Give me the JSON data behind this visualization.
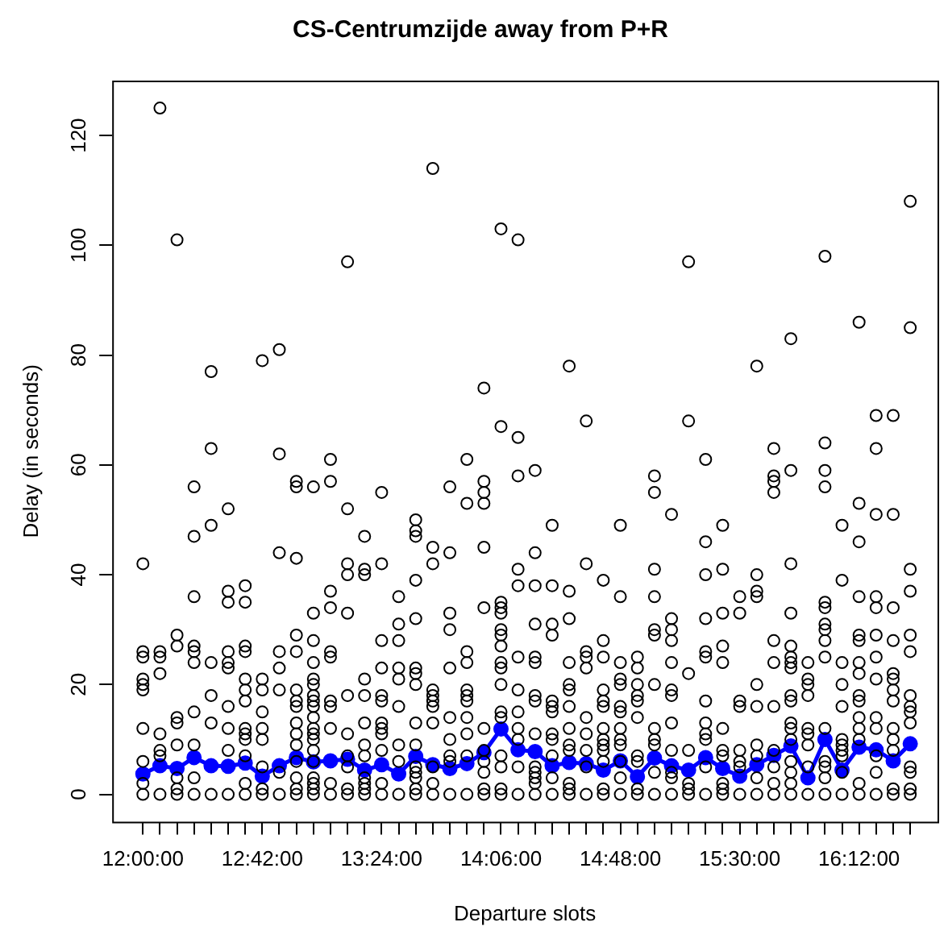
{
  "chart_data": {
    "type": "scatter",
    "title": "CS-Centrumzijde away from P+R",
    "xlabel": "Departure slots",
    "ylabel": "Delay (in seconds)",
    "xlim": [
      11.82,
      16.66
    ],
    "ylim": [
      -5,
      130
    ],
    "yticks": [
      0,
      20,
      40,
      60,
      80,
      100,
      120
    ],
    "xticks": [
      {
        "value": 12,
        "label": "12:00:00"
      },
      {
        "value": 12.1,
        "label": null
      },
      {
        "value": 12.2,
        "label": null
      },
      {
        "value": 12.3,
        "label": null
      },
      {
        "value": 12.4,
        "label": null
      },
      {
        "value": 12.5,
        "label": null
      },
      {
        "value": 12.6,
        "label": null
      },
      {
        "value": 12.7,
        "label": "12:42:00"
      },
      {
        "value": 12.8,
        "label": null
      },
      {
        "value": 12.9,
        "label": null
      },
      {
        "value": 13,
        "label": null
      },
      {
        "value": 13.1,
        "label": null
      },
      {
        "value": 13.2,
        "label": null
      },
      {
        "value": 13.3,
        "label": null
      },
      {
        "value": 13.4,
        "label": "13:24:00"
      },
      {
        "value": 13.5,
        "label": null
      },
      {
        "value": 13.6,
        "label": null
      },
      {
        "value": 13.7,
        "label": null
      },
      {
        "value": 13.8,
        "label": null
      },
      {
        "value": 13.9,
        "label": null
      },
      {
        "value": 14,
        "label": null
      },
      {
        "value": 14.1,
        "label": "14:06:00"
      },
      {
        "value": 14.2,
        "label": null
      },
      {
        "value": 14.3,
        "label": null
      },
      {
        "value": 14.4,
        "label": null
      },
      {
        "value": 14.5,
        "label": null
      },
      {
        "value": 14.6,
        "label": null
      },
      {
        "value": 14.7,
        "label": null
      },
      {
        "value": 14.8,
        "label": "14:48:00"
      },
      {
        "value": 14.9,
        "label": null
      },
      {
        "value": 15,
        "label": null
      },
      {
        "value": 15.1,
        "label": null
      },
      {
        "value": 15.2,
        "label": null
      },
      {
        "value": 15.3,
        "label": null
      },
      {
        "value": 15.4,
        "label": null
      },
      {
        "value": 15.5,
        "label": "15:30:00"
      },
      {
        "value": 15.6,
        "label": null
      },
      {
        "value": 15.7,
        "label": null
      },
      {
        "value": 15.8,
        "label": null
      },
      {
        "value": 15.9,
        "label": null
      },
      {
        "value": 16,
        "label": null
      },
      {
        "value": 16.1,
        "label": null
      },
      {
        "value": 16.2,
        "label": "16:12:00"
      },
      {
        "value": 16.3,
        "label": null
      },
      {
        "value": 16.4,
        "label": null
      },
      {
        "value": 16.5,
        "label": null
      }
    ],
    "grid": false,
    "legend": false,
    "series": [
      {
        "type": "scatter",
        "color": "#000000",
        "marker": "circle",
        "x": [
          12,
          12,
          12,
          12,
          12,
          12,
          12,
          12,
          12,
          12,
          12.1,
          12.1,
          12.1,
          12.1,
          12.1,
          12.1,
          12.1,
          12.1,
          12.2,
          12.2,
          12.2,
          12.2,
          12.2,
          12.2,
          12.2,
          12.2,
          12.2,
          12.3,
          12.3,
          12.3,
          12.3,
          12.3,
          12.3,
          12.3,
          12.3,
          12.3,
          12.3,
          12.4,
          12.4,
          12.4,
          12.4,
          12.4,
          12.4,
          12.4,
          12.5,
          12.5,
          12.5,
          12.5,
          12.5,
          12.5,
          12.5,
          12.5,
          12.5,
          12.5,
          12.6,
          12.6,
          12.6,
          12.6,
          12.6,
          12.6,
          12.6,
          12.6,
          12.6,
          12.6,
          12.6,
          12.6,
          12.6,
          12.7,
          12.7,
          12.7,
          12.7,
          12.7,
          12.7,
          12.7,
          12.7,
          12.7,
          12.8,
          12.8,
          12.8,
          12.8,
          12.8,
          12.8,
          12.8,
          12.8,
          12.9,
          12.9,
          12.9,
          12.9,
          12.9,
          12.9,
          12.9,
          12.9,
          12.9,
          12.9,
          12.9,
          12.9,
          12.9,
          12.9,
          12.9,
          13,
          13,
          13,
          13,
          13,
          13,
          13,
          13,
          13,
          13,
          13,
          13,
          13,
          13,
          13,
          13,
          13,
          13,
          13,
          13.1,
          13.1,
          13.1,
          13.1,
          13.1,
          13.1,
          13.1,
          13.1,
          13.1,
          13.1,
          13.1,
          13.2,
          13.2,
          13.2,
          13.2,
          13.2,
          13.2,
          13.2,
          13.2,
          13.2,
          13.2,
          13.2,
          13.3,
          13.3,
          13.3,
          13.3,
          13.3,
          13.3,
          13.3,
          13.3,
          13.3,
          13.3,
          13.3,
          13.3,
          13.4,
          13.4,
          13.4,
          13.4,
          13.4,
          13.4,
          13.4,
          13.4,
          13.4,
          13.4,
          13.4,
          13.4,
          13.5,
          13.5,
          13.5,
          13.5,
          13.5,
          13.5,
          13.5,
          13.5,
          13.5,
          13.6,
          13.6,
          13.6,
          13.6,
          13.6,
          13.6,
          13.6,
          13.6,
          13.6,
          13.6,
          13.6,
          13.6,
          13.6,
          13.6,
          13.6,
          13.7,
          13.7,
          13.7,
          13.7,
          13.7,
          13.7,
          13.7,
          13.7,
          13.7,
          13.7,
          13.7,
          13.8,
          13.8,
          13.8,
          13.8,
          13.8,
          13.8,
          13.8,
          13.8,
          13.8,
          13.8,
          13.9,
          13.9,
          13.9,
          13.9,
          13.9,
          13.9,
          13.9,
          13.9,
          13.9,
          13.9,
          13.9,
          14,
          14,
          14,
          14,
          14,
          14,
          14,
          14,
          14,
          14,
          14,
          14,
          14.1,
          14.1,
          14.1,
          14.1,
          14.1,
          14.1,
          14.1,
          14.1,
          14.1,
          14.1,
          14.1,
          14.1,
          14.1,
          14.1,
          14.1,
          14.1,
          14.1,
          14.2,
          14.2,
          14.2,
          14.2,
          14.2,
          14.2,
          14.2,
          14.2,
          14.2,
          14.2,
          14.2,
          14.2,
          14.3,
          14.3,
          14.3,
          14.3,
          14.3,
          14.3,
          14.3,
          14.3,
          14.3,
          14.3,
          14.3,
          14.3,
          14.3,
          14.3,
          14.4,
          14.4,
          14.4,
          14.4,
          14.4,
          14.4,
          14.4,
          14.4,
          14.4,
          14.4,
          14.4,
          14.4,
          14.5,
          14.5,
          14.5,
          14.5,
          14.5,
          14.5,
          14.5,
          14.5,
          14.5,
          14.5,
          14.5,
          14.5,
          14.5,
          14.6,
          14.6,
          14.6,
          14.6,
          14.6,
          14.6,
          14.6,
          14.6,
          14.6,
          14.6,
          14.7,
          14.7,
          14.7,
          14.7,
          14.7,
          14.7,
          14.7,
          14.7,
          14.7,
          14.7,
          14.7,
          14.7,
          14.7,
          14.8,
          14.8,
          14.8,
          14.8,
          14.8,
          14.8,
          14.8,
          14.8,
          14.8,
          14.8,
          14.8,
          14.8,
          14.8,
          14.9,
          14.9,
          14.9,
          14.9,
          14.9,
          14.9,
          14.9,
          14.9,
          14.9,
          14.9,
          15,
          15,
          15,
          15,
          15,
          15,
          15,
          15,
          15,
          15,
          15,
          15,
          15.1,
          15.1,
          15.1,
          15.1,
          15.1,
          15.1,
          15.1,
          15.1,
          15.1,
          15.1,
          15.1,
          15.1,
          15.2,
          15.2,
          15.2,
          15.2,
          15.2,
          15.2,
          15.2,
          15.3,
          15.3,
          15.3,
          15.3,
          15.3,
          15.3,
          15.3,
          15.3,
          15.3,
          15.3,
          15.3,
          15.3,
          15.4,
          15.4,
          15.4,
          15.4,
          15.4,
          15.4,
          15.4,
          15.4,
          15.4,
          15.4,
          15.4,
          15.5,
          15.5,
          15.5,
          15.5,
          15.5,
          15.5,
          15.5,
          15.5,
          15.6,
          15.6,
          15.6,
          15.6,
          15.6,
          15.6,
          15.6,
          15.6,
          15.6,
          15.6,
          15.7,
          15.7,
          15.7,
          15.7,
          15.7,
          15.7,
          15.7,
          15.7,
          15.7,
          15.7,
          15.7,
          15.8,
          15.8,
          15.8,
          15.8,
          15.8,
          15.8,
          15.8,
          15.8,
          15.8,
          15.8,
          15.8,
          15.8,
          15.8,
          15.8,
          15.8,
          15.8,
          15.8,
          15.9,
          15.9,
          15.9,
          15.9,
          15.9,
          15.9,
          15.9,
          15.9,
          15.9,
          16,
          16,
          16,
          16,
          16,
          16,
          16,
          16,
          16,
          16,
          16,
          16,
          16,
          16,
          16,
          16.1,
          16.1,
          16.1,
          16.1,
          16.1,
          16.1,
          16.1,
          16.1,
          16.1,
          16.1,
          16.1,
          16.2,
          16.2,
          16.2,
          16.2,
          16.2,
          16.2,
          16.2,
          16.2,
          16.2,
          16.2,
          16.2,
          16.2,
          16.2,
          16.2,
          16.2,
          16.3,
          16.3,
          16.3,
          16.3,
          16.3,
          16.3,
          16.3,
          16.3,
          16.3,
          16.3,
          16.3,
          16.3,
          16.3,
          16.4,
          16.4,
          16.4,
          16.4,
          16.4,
          16.4,
          16.4,
          16.4,
          16.4,
          16.4,
          16.4,
          16.4,
          16.4,
          16.5,
          16.5,
          16.5,
          16.5,
          16.5,
          16.5,
          16.5,
          16.5,
          16.5,
          16.5,
          16.5,
          16.5,
          16.5,
          16.5
        ],
        "values": [
          42,
          26,
          25,
          21,
          20,
          19,
          12,
          6,
          2,
          0,
          125,
          26,
          25,
          22,
          11,
          8,
          7,
          0,
          101,
          29,
          27,
          14,
          13,
          9,
          3,
          1,
          0,
          56,
          47,
          36,
          27,
          26,
          24,
          15,
          9,
          3,
          0,
          77,
          63,
          49,
          24,
          18,
          13,
          0,
          52,
          37,
          35,
          26,
          24,
          23,
          16,
          12,
          8,
          0,
          38,
          35,
          27,
          26,
          21,
          19,
          17,
          12,
          11,
          10,
          7,
          2,
          0,
          79,
          21,
          19,
          15,
          12,
          10,
          5,
          1,
          0,
          81,
          62,
          44,
          26,
          23,
          19,
          4,
          0,
          57,
          56,
          43,
          29,
          26,
          19,
          17,
          16,
          13,
          11,
          9,
          6,
          3,
          1,
          0,
          56,
          33,
          28,
          24,
          21,
          20,
          18,
          17,
          16,
          14,
          12,
          11,
          10,
          8,
          6,
          3,
          2,
          1,
          0,
          61,
          57,
          37,
          34,
          26,
          25,
          17,
          16,
          12,
          2,
          0,
          97,
          52,
          42,
          40,
          33,
          18,
          11,
          7,
          5,
          1,
          0,
          47,
          41,
          40,
          21,
          18,
          13,
          9,
          7,
          3,
          2,
          1,
          0,
          55,
          42,
          28,
          23,
          18,
          17,
          13,
          12,
          11,
          8,
          2,
          0,
          36,
          31,
          28,
          23,
          21,
          16,
          9,
          6,
          0,
          50,
          48,
          47,
          39,
          32,
          23,
          22,
          20,
          13,
          9,
          5,
          4,
          3,
          1,
          0,
          114,
          45,
          42,
          19,
          18,
          17,
          16,
          13,
          5,
          2,
          0,
          56,
          44,
          33,
          30,
          23,
          14,
          10,
          7,
          6,
          0,
          61,
          53,
          26,
          24,
          19,
          18,
          17,
          14,
          11,
          7,
          0,
          74,
          57,
          55,
          53,
          45,
          34,
          12,
          8,
          6,
          4,
          1,
          0,
          103,
          67,
          35,
          34,
          33,
          30,
          29,
          27,
          24,
          23,
          20,
          15,
          14,
          7,
          5,
          1,
          0,
          101,
          65,
          58,
          41,
          38,
          25,
          19,
          15,
          12,
          10,
          5,
          0,
          59,
          44,
          38,
          31,
          25,
          24,
          18,
          17,
          11,
          5,
          4,
          3,
          2,
          0,
          49,
          38,
          31,
          29,
          17,
          16,
          15,
          11,
          10,
          7,
          3,
          0,
          78,
          37,
          32,
          24,
          20,
          19,
          16,
          12,
          9,
          8,
          2,
          1,
          0,
          68,
          42,
          26,
          25,
          23,
          14,
          11,
          8,
          5,
          0,
          39,
          28,
          25,
          19,
          17,
          16,
          12,
          10,
          9,
          8,
          6,
          1,
          0,
          49,
          36,
          24,
          21,
          20,
          16,
          15,
          12,
          10,
          9,
          6,
          3,
          0,
          25,
          23,
          20,
          18,
          17,
          14,
          7,
          6,
          1,
          0,
          58,
          55,
          41,
          36,
          30,
          29,
          20,
          12,
          10,
          9,
          4,
          0,
          51,
          32,
          30,
          28,
          24,
          19,
          18,
          13,
          8,
          4,
          3,
          0,
          97,
          68,
          22,
          8,
          2,
          1,
          0,
          61,
          46,
          40,
          32,
          26,
          25,
          17,
          13,
          11,
          10,
          5,
          0,
          49,
          41,
          33,
          27,
          24,
          12,
          8,
          7,
          2,
          1,
          0,
          36,
          33,
          17,
          16,
          8,
          6,
          5,
          0,
          78,
          40,
          37,
          36,
          20,
          16,
          9,
          7,
          3,
          0,
          63,
          58,
          57,
          55,
          28,
          24,
          16,
          8,
          5,
          2,
          0,
          83,
          59,
          42,
          33,
          27,
          25,
          24,
          23,
          18,
          17,
          13,
          12,
          10,
          6,
          4,
          2,
          0,
          24,
          21,
          20,
          18,
          12,
          11,
          9,
          5,
          0,
          98,
          64,
          59,
          56,
          35,
          34,
          31,
          30,
          28,
          25,
          12,
          6,
          5,
          3,
          0,
          49,
          39,
          24,
          20,
          16,
          10,
          9,
          8,
          7,
          4,
          0,
          86,
          53,
          46,
          36,
          29,
          28,
          24,
          22,
          18,
          17,
          14,
          12,
          10,
          2,
          0,
          69,
          63,
          51,
          36,
          34,
          29,
          25,
          21,
          14,
          12,
          7,
          4,
          0,
          69,
          51,
          34,
          28,
          22,
          21,
          19,
          17,
          12,
          10,
          8,
          1,
          0,
          108,
          85,
          41,
          37,
          29,
          26,
          18,
          16,
          15,
          13,
          5,
          4,
          1,
          0
        ]
      },
      {
        "type": "line",
        "color": "#0000ff",
        "marker": "circle",
        "x": [
          12,
          12.1,
          12.2,
          12.3,
          12.4,
          12.5,
          12.6,
          12.7,
          12.8,
          12.9,
          13,
          13.1,
          13.2,
          13.3,
          13.4,
          13.5,
          13.6,
          13.7,
          13.8,
          13.9,
          14,
          14.1,
          14.2,
          14.3,
          14.4,
          14.5,
          14.6,
          14.7,
          14.8,
          14.9,
          15,
          15.1,
          15.2,
          15.3,
          15.4,
          15.5,
          15.6,
          15.7,
          15.8,
          15.9,
          16,
          16.1,
          16.2,
          16.3,
          16.4,
          16.5
        ],
        "values": [
          3.7,
          5.2,
          4.7,
          6.7,
          5.2,
          5.1,
          5.7,
          3.3,
          5.2,
          6.7,
          5.9,
          6.1,
          6.4,
          4.4,
          5.4,
          3.7,
          6.9,
          5.4,
          4.7,
          5.6,
          7.6,
          11.9,
          8.1,
          7.8,
          5.2,
          5.8,
          5.6,
          4.4,
          6.1,
          3.2,
          6.6,
          5.2,
          4.4,
          6.7,
          4.7,
          3.3,
          5.4,
          7.1,
          8.8,
          3.0,
          10.0,
          4.4,
          8.6,
          8.1,
          6.1,
          9.2
        ]
      }
    ]
  }
}
